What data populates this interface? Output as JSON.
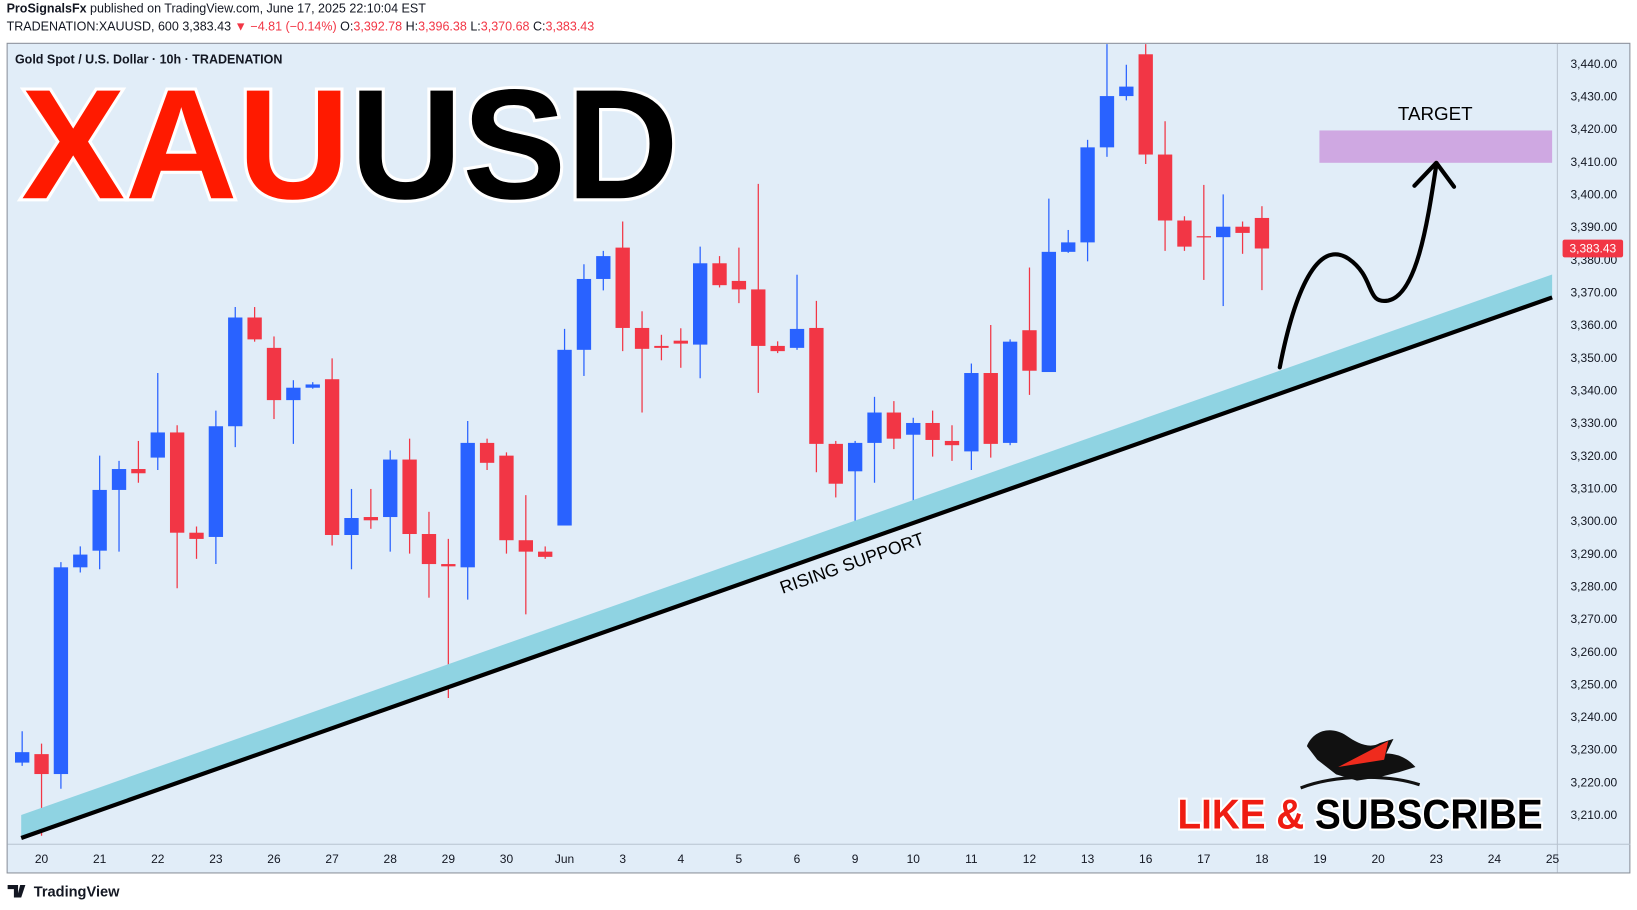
{
  "header": {
    "author": "ProSignalsFx",
    "published": "published on TradingView.com, June 17, 2025 22:10:04 EST",
    "symbol": "TRADENATION:XAUUSD, 600",
    "last": "3,383.43",
    "change": "▼ −4.81 (−0.14%)",
    "ohlc": [
      {
        "label": "O:",
        "value": "3,392.78"
      },
      {
        "label": "H:",
        "value": "3,396.38"
      },
      {
        "label": "L:",
        "value": "3,370.68"
      },
      {
        "label": "C:",
        "value": "3,383.43"
      }
    ]
  },
  "chart_data": {
    "type": "candlestick",
    "legend_text": "Gold Spot / U.S. Dollar · 10h · TRADENATION",
    "up_color": "#2962ff",
    "down_color": "#f23645",
    "grid": false,
    "open": [
      3226,
      3228.6,
      3222.5,
      3285.8,
      3290.9,
      3309.5,
      3315.9,
      3319.4,
      3327.1,
      3296.4,
      3295.1,
      3329,
      3362.3,
      3353,
      3337,
      3340.8,
      3343.4,
      3295.7,
      3301.2,
      3301.2,
      3318.8,
      3296,
      3286.8,
      3285.8,
      3323.9,
      3320,
      3294.1,
      3290.6,
      3298.6,
      3352.4,
      3374.1,
      3383.7,
      3359.1,
      3353.6,
      3355.2,
      3354,
      3378.9,
      3373.5,
      3370.9,
      3353.6,
      3353,
      3359.1,
      3323.6,
      3315.2,
      3323.9,
      3333.2,
      3326.4,
      3330,
      3324.5,
      3321.3,
      3345.3,
      3323.9,
      3358.4,
      3345.6,
      3382.4,
      3385.3,
      3414.4,
      3430.1,
      3442.9,
      3412.2,
      3392,
      3387.2,
      3386.9,
      3390.1,
      3392.78
    ],
    "high": [
      3235.6,
      3231.8,
      3287.4,
      3292.2,
      3320,
      3318.4,
      3324.5,
      3345.3,
      3329.3,
      3298.3,
      3333.8,
      3365.5,
      3365.5,
      3356.5,
      3343.1,
      3342.5,
      3349.8,
      3309.8,
      3309.8,
      3321.6,
      3325.2,
      3302.8,
      3294.5,
      3330.6,
      3325.2,
      3321,
      3307.9,
      3292.2,
      3358.8,
      3378.6,
      3382.7,
      3391.7,
      3364.2,
      3357,
      3359,
      3384,
      3381.1,
      3383.7,
      3403.2,
      3355,
      3375.4,
      3367.4,
      3324.5,
      3324.5,
      3338,
      3336.7,
      3331.6,
      3333.8,
      3329.3,
      3348.2,
      3360,
      3355.6,
      3377.6,
      3398.7,
      3389.1,
      3416.7,
      3446,
      3439.7,
      3446,
      3422.4,
      3393.3,
      3402.9,
      3400,
      3391.7,
      3396.38
    ],
    "low": [
      3225,
      3203.6,
      3218,
      3284.2,
      3285.2,
      3290.6,
      3311.7,
      3315.6,
      3279.4,
      3288.4,
      3286.8,
      3322.6,
      3354.9,
      3331.2,
      3323.6,
      3340.5,
      3292.5,
      3285.2,
      3297.6,
      3290.6,
      3290,
      3276.5,
      3245.8,
      3275.9,
      3315.6,
      3290,
      3271.4,
      3288.4,
      3298.6,
      3344.4,
      3370.6,
      3352,
      3333.2,
      3349.2,
      3346.9,
      3343.7,
      3371.5,
      3366.7,
      3339.2,
      3351.4,
      3352.4,
      3314.9,
      3307.2,
      3293.2,
      3311.7,
      3322,
      3301.8,
      3319.7,
      3318.4,
      3315.6,
      3319.4,
      3323.2,
      3338.6,
      3345.6,
      3382.1,
      3379.5,
      3411.5,
      3428.8,
      3409.3,
      3382.7,
      3382.7,
      3373.8,
      3365.8,
      3381.8,
      3370.68
    ],
    "close": [
      3229.2,
      3222.5,
      3285.8,
      3289.7,
      3309.5,
      3315.9,
      3314.6,
      3327.1,
      3296.4,
      3294.5,
      3329,
      3362.3,
      3355.6,
      3337,
      3340.8,
      3341.8,
      3295.7,
      3300.9,
      3300.2,
      3318.8,
      3296,
      3286.8,
      3286.1,
      3323.9,
      3317.8,
      3294.1,
      3290.6,
      3289,
      3352.4,
      3374.1,
      3381.1,
      3359.1,
      3352.7,
      3353,
      3354.3,
      3378.9,
      3372.2,
      3370.9,
      3353.6,
      3352,
      3358.8,
      3323.6,
      3311.4,
      3323.9,
      3333.2,
      3325.2,
      3330,
      3324.8,
      3323.2,
      3345.3,
      3323.6,
      3354.9,
      3346,
      3382.4,
      3385.3,
      3414.4,
      3430.1,
      3433,
      3412.2,
      3392,
      3384,
      3386.9,
      3390.1,
      3388.2,
      3383.43
    ],
    "xlim": [
      -0.75,
      79.25
    ],
    "xticks": [
      {
        "value": 1,
        "label": "20"
      },
      {
        "value": 4,
        "label": "21"
      },
      {
        "value": 7,
        "label": "22"
      },
      {
        "value": 10,
        "label": "23"
      },
      {
        "value": 13,
        "label": "26"
      },
      {
        "value": 16,
        "label": "27"
      },
      {
        "value": 19,
        "label": "28"
      },
      {
        "value": 22,
        "label": "29"
      },
      {
        "value": 25,
        "label": "30"
      },
      {
        "value": 28,
        "label": "Jun"
      },
      {
        "value": 31,
        "label": "3"
      },
      {
        "value": 34,
        "label": "4"
      },
      {
        "value": 37,
        "label": "5"
      },
      {
        "value": 40,
        "label": "6"
      },
      {
        "value": 43,
        "label": "9"
      },
      {
        "value": 46,
        "label": "10"
      },
      {
        "value": 49,
        "label": "11"
      },
      {
        "value": 52,
        "label": "12"
      },
      {
        "value": 55,
        "label": "13"
      },
      {
        "value": 58,
        "label": "16"
      },
      {
        "value": 61,
        "label": "17"
      },
      {
        "value": 64,
        "label": "18"
      },
      {
        "value": 67,
        "label": "19"
      },
      {
        "value": 70,
        "label": "20"
      },
      {
        "value": 73,
        "label": "23"
      },
      {
        "value": 76,
        "label": "24"
      },
      {
        "value": 79,
        "label": "25"
      }
    ],
    "ylim": [
      3201,
      3446.1
    ],
    "yticks": [
      {
        "value": 3210,
        "label": "3,210.00"
      },
      {
        "value": 3220,
        "label": "3,220.00"
      },
      {
        "value": 3230,
        "label": "3,230.00"
      },
      {
        "value": 3240,
        "label": "3,240.00"
      },
      {
        "value": 3250,
        "label": "3,250.00"
      },
      {
        "value": 3260,
        "label": "3,260.00"
      },
      {
        "value": 3270,
        "label": "3,270.00"
      },
      {
        "value": 3280,
        "label": "3,280.00"
      },
      {
        "value": 3290,
        "label": "3,290.00"
      },
      {
        "value": 3300,
        "label": "3,300.00"
      },
      {
        "value": 3310,
        "label": "3,310.00"
      },
      {
        "value": 3320,
        "label": "3,320.00"
      },
      {
        "value": 3330,
        "label": "3,330.00"
      },
      {
        "value": 3340,
        "label": "3,340.00"
      },
      {
        "value": 3350,
        "label": "3,350.00"
      },
      {
        "value": 3360,
        "label": "3,360.00"
      },
      {
        "value": 3370,
        "label": "3,370.00"
      },
      {
        "value": 3380,
        "label": "3,380.00"
      },
      {
        "value": 3390,
        "label": "3,390.00"
      },
      {
        "value": 3400,
        "label": "3,400.00"
      },
      {
        "value": 3410,
        "label": "3,410.00"
      },
      {
        "value": 3420,
        "label": "3,420.00"
      },
      {
        "value": 3430,
        "label": "3,430.00"
      },
      {
        "value": 3440,
        "label": "3,440.00"
      }
    ],
    "last_price": {
      "value": 3383.43,
      "label": "3,383.43"
    }
  },
  "overlay": {
    "title_part1": "XAU",
    "title_part2": "USD",
    "support_label": "RISING SUPPORT",
    "target_label": "TARGET",
    "cta_part1": "LIKE &",
    "cta_part2": "SUBSCRIBE"
  },
  "footer": {
    "brand": "TradingView"
  }
}
